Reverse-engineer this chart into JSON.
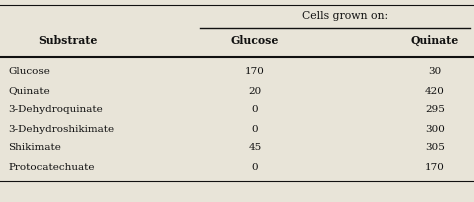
{
  "header_group": "Cells grown on:",
  "col0_header": "Substrate",
  "col1_header": "Glucose",
  "col2_header": "Quinate",
  "rows": [
    [
      "Glucose",
      "170",
      "30"
    ],
    [
      "Quinate",
      "20",
      "420"
    ],
    [
      "3-Dehydroquinate",
      "0",
      "295"
    ],
    [
      "3-Dehydroshikimate",
      "0",
      "300"
    ],
    [
      "Shikimate",
      "45",
      "305"
    ],
    [
      "Protocatechuate",
      "0",
      "170"
    ]
  ],
  "bg_color": "#e8e4d8",
  "text_color": "#111111",
  "font_size": 7.5,
  "header_font_size": 7.8,
  "figsize": [
    4.74,
    2.02
  ],
  "dpi": 100
}
